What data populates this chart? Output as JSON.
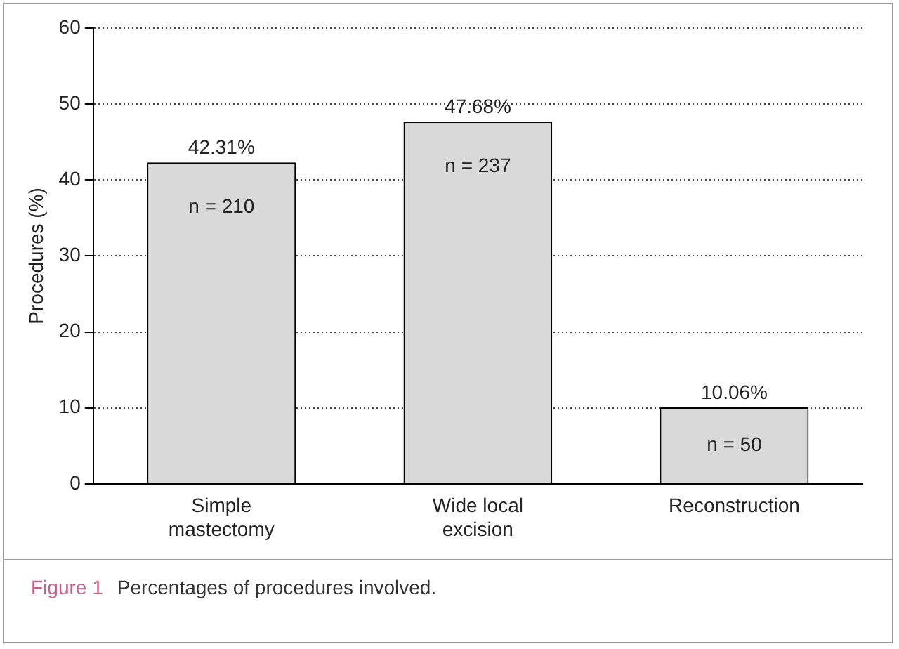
{
  "chart_data": {
    "type": "bar",
    "ylabel": "Procedures (%)",
    "categories": [
      "Simple mastectomy",
      "Wide local excision",
      "Reconstruction"
    ],
    "values": [
      42.31,
      47.68,
      10.06
    ],
    "color": "#d9d9d9",
    "value_labels": [
      "42.31%",
      "47.68%",
      "10.06%"
    ],
    "ylim": [
      0,
      60
    ],
    "yticks": [
      0,
      10,
      20,
      30,
      40,
      50,
      60
    ],
    "grid": "y",
    "legend": false,
    "annotations": [
      "n = 210",
      "n = 237",
      "n = 50",
      "Figure 1 Percentages of procedures involved."
    ]
  }
}
